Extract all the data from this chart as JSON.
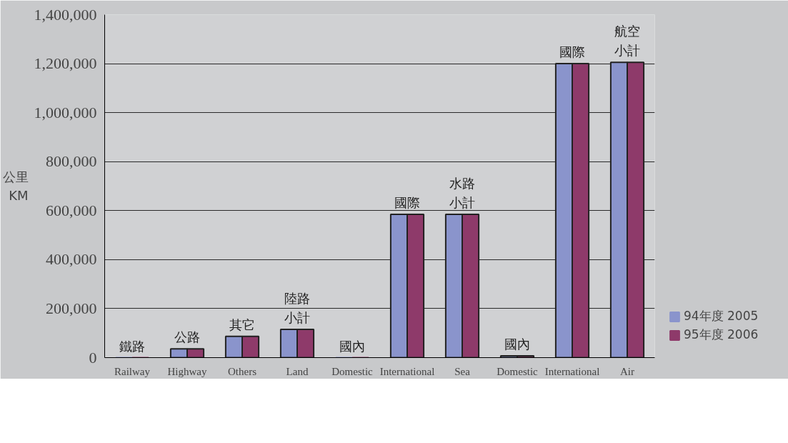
{
  "chart_data": {
    "type": "bar",
    "ylabel": "公里\nKM",
    "categories": [
      "Railway",
      "Highway",
      "Others",
      "Land",
      "Domestic",
      "International",
      "Sea",
      "Domestic",
      "International",
      "Air"
    ],
    "series": [
      {
        "name": "94年度 2005",
        "color": "#8a94cc",
        "values": [
          0,
          36000,
          87000,
          115000,
          0,
          585000,
          585000,
          7000,
          1200000,
          1205000
        ]
      },
      {
        "name": "95年度 2006",
        "color": "#8e3a6a",
        "values": [
          0,
          36000,
          87000,
          115000,
          0,
          585000,
          585000,
          7000,
          1200000,
          1205000
        ]
      }
    ],
    "ylim": [
      0,
      1400000
    ],
    "yticks": [
      {
        "value": 0,
        "label": "0"
      },
      {
        "value": 200000,
        "label": "200,000"
      },
      {
        "value": 400000,
        "label": "400,000"
      },
      {
        "value": 600000,
        "label": "600,000"
      },
      {
        "value": 800000,
        "label": "800,000"
      },
      {
        "value": 1000000,
        "label": "1,000,000"
      },
      {
        "value": 1200000,
        "label": "1,200,000"
      },
      {
        "value": 1400000,
        "label": "1,400,000"
      }
    ],
    "annotations": [
      "鐵路",
      "公路",
      "其它",
      "陸路小計",
      "國內",
      "國際",
      "水路小計",
      "國內",
      "國際",
      "航空小計"
    ],
    "grid": "y",
    "legend": "bottom right"
  }
}
